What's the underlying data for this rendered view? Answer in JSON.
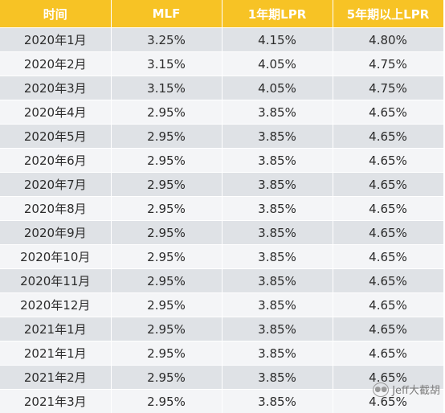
{
  "headers": [
    "时间",
    "MLF",
    "1年期LPR",
    "5年期以上LPR"
  ],
  "rows": [
    [
      "2020年1月",
      "3.25%",
      "4.15%",
      "4.80%"
    ],
    [
      "2020年2月",
      "3.15%",
      "4.05%",
      "4.75%"
    ],
    [
      "2020年3月",
      "3.15%",
      "4.05%",
      "4.75%"
    ],
    [
      "2020年4月",
      "2.95%",
      "3.85%",
      "4.65%"
    ],
    [
      "2020年5月",
      "2.95%",
      "3.85%",
      "4.65%"
    ],
    [
      "2020年6月",
      "2.95%",
      "3.85%",
      "4.65%"
    ],
    [
      "2020年7月",
      "2.95%",
      "3.85%",
      "4.65%"
    ],
    [
      "2020年8月",
      "2.95%",
      "3.85%",
      "4.65%"
    ],
    [
      "2020年9月",
      "2.95%",
      "3.85%",
      "4.65%"
    ],
    [
      "2020年10月",
      "2.95%",
      "3.85%",
      "4.65%"
    ],
    [
      "2020年11月",
      "2.95%",
      "3.85%",
      "4.65%"
    ],
    [
      "2020年12月",
      "2.95%",
      "3.85%",
      "4.65%"
    ],
    [
      "2021年1月",
      "2.95%",
      "3.85%",
      "4.65%"
    ],
    [
      "2021年1月",
      "2.95%",
      "3.85%",
      "4.65%"
    ],
    [
      "2021年2月",
      "2.95%",
      "3.85%",
      "4.65%"
    ],
    [
      "2021年3月",
      "2.95%",
      "3.85%",
      "4.65%"
    ]
  ],
  "watermark": "Jeff大截胡",
  "watermark_icon": "wechat-icon",
  "colors": {
    "header_bg": "#f7c325",
    "row_odd": "#dfe2e6",
    "row_even": "#f4f5f7"
  }
}
